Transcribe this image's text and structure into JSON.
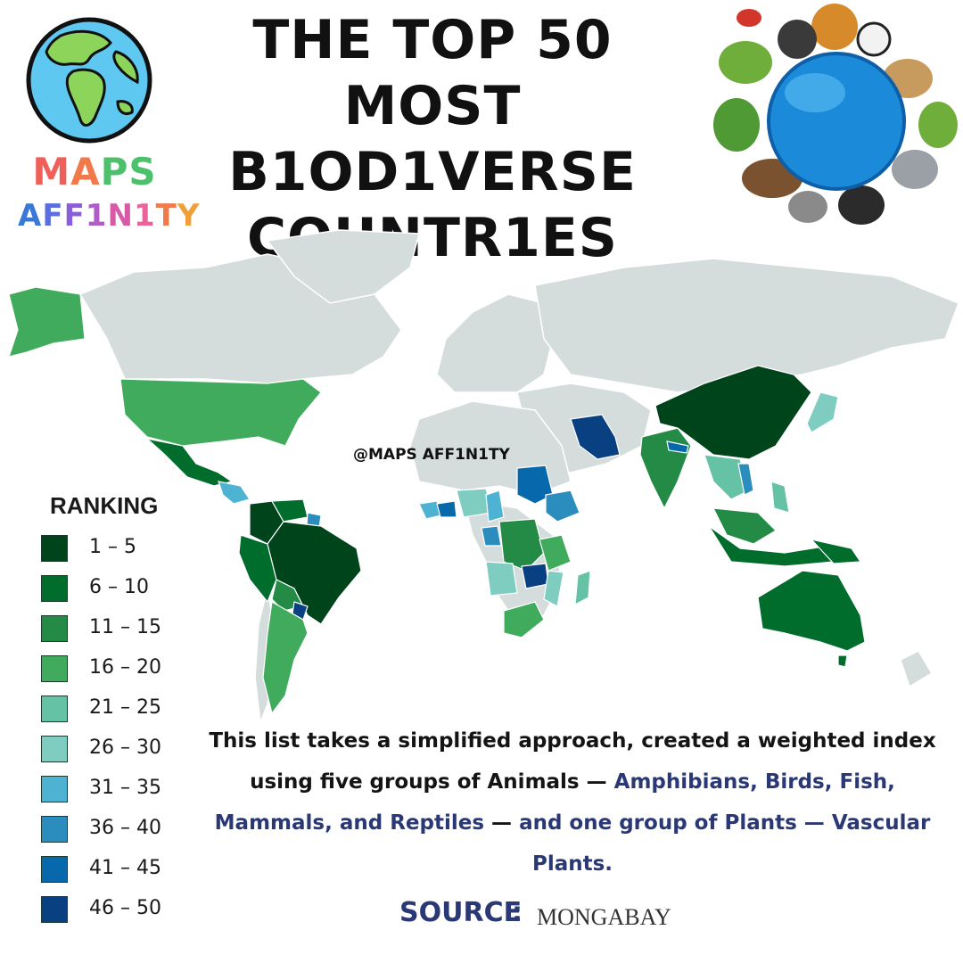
{
  "title_lines": [
    "THE TOP 50 MOST",
    "B1OD1VERSE",
    "COUNTR1ES"
  ],
  "logo": {
    "word1_letters": [
      "M",
      "A",
      "P",
      "S"
    ],
    "word1_colors": [
      "#f0605a",
      "#f07a4a",
      "#4cc06a",
      "#4cc06a"
    ],
    "word2_letters": [
      "A",
      "F",
      "F",
      "1",
      "N",
      "1",
      "T",
      "Y"
    ],
    "word2_colors": [
      "#3a78d6",
      "#5b6ee0",
      "#8a5ed8",
      "#b05cc8",
      "#d65aa8",
      "#e8649a",
      "#f07a4a",
      "#f0a03a"
    ],
    "icon": "globe-icon"
  },
  "watermark": "@MAPS AFF1N1TY",
  "legend": {
    "title": "RANKING",
    "items": [
      {
        "label": "1 – 5",
        "color": "#00441b"
      },
      {
        "label": "6 – 10",
        "color": "#006d2c"
      },
      {
        "label": "11 – 15",
        "color": "#238b45"
      },
      {
        "label": "16 – 20",
        "color": "#41ab5d"
      },
      {
        "label": "21 – 25",
        "color": "#66c2a4"
      },
      {
        "label": "26 – 30",
        "color": "#7fcdc1"
      },
      {
        "label": "31 – 35",
        "color": "#4eb3d3"
      },
      {
        "label": "36 – 40",
        "color": "#2b8cbe"
      },
      {
        "label": "41 – 45",
        "color": "#0868ac"
      },
      {
        "label": "46 – 50",
        "color": "#084081"
      }
    ]
  },
  "description": {
    "black_1": "This list takes a simplified approach, created a weighted index using five groups of Animals —",
    "blue_1": "Amphibians, Birds, Fish, Mammals, and Reptiles",
    "black_2": "—",
    "blue_2": "and one group of Plants — Vascular Plants."
  },
  "source": {
    "label": "SOURCE",
    "colon": ":",
    "name": "MONGABAY"
  },
  "colors": {
    "land_default": "#d5dcdc",
    "border": "#ffffff",
    "accent_blue": "#2a3875"
  }
}
